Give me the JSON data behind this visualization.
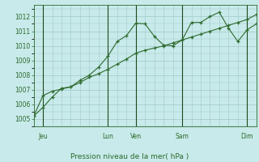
{
  "background_color": "#c8eaea",
  "grid_color": "#a0c8c8",
  "line_color": "#2d6a2d",
  "vline_color": "#1a4a1a",
  "xlabel": "Pression niveau de la mer( hPa )",
  "xtick_labels": [
    "Jeu",
    "Lun",
    "Ven",
    "Sam",
    "Dim"
  ],
  "ylim": [
    1004.5,
    1012.8
  ],
  "yticks": [
    1005,
    1006,
    1007,
    1008,
    1009,
    1010,
    1011,
    1012
  ],
  "n_points": 25,
  "line1_x": [
    0,
    1,
    2,
    3,
    4,
    5,
    6,
    7,
    8,
    9,
    10,
    11,
    12,
    13,
    14,
    15,
    16,
    17,
    18,
    19,
    20,
    21,
    22,
    23,
    24
  ],
  "line1_y": [
    1005.2,
    1005.8,
    1006.5,
    1007.1,
    1007.2,
    1007.65,
    1008.0,
    1008.55,
    1009.3,
    1010.3,
    1010.7,
    1011.55,
    1011.5,
    1010.65,
    1010.05,
    1010.0,
    1010.4,
    1011.6,
    1011.6,
    1012.0,
    1012.3,
    1011.2,
    1010.3,
    1011.1,
    1011.5
  ],
  "line2_x": [
    0,
    1,
    2,
    3,
    4,
    5,
    6,
    7,
    8,
    9,
    10,
    11,
    12,
    13,
    14,
    15,
    16,
    17,
    18,
    19,
    20,
    21,
    22,
    23,
    24
  ],
  "line2_y": [
    1005.2,
    1006.6,
    1006.9,
    1007.05,
    1007.2,
    1007.5,
    1007.85,
    1008.1,
    1008.4,
    1008.75,
    1009.1,
    1009.5,
    1009.7,
    1009.85,
    1010.0,
    1010.2,
    1010.4,
    1010.6,
    1010.8,
    1011.0,
    1011.2,
    1011.4,
    1011.6,
    1011.8,
    1012.15
  ],
  "vline_x": [
    1,
    8,
    11,
    16,
    23
  ],
  "xtick_pos": [
    1,
    8,
    11,
    16,
    23
  ],
  "xlim": [
    0,
    24
  ]
}
